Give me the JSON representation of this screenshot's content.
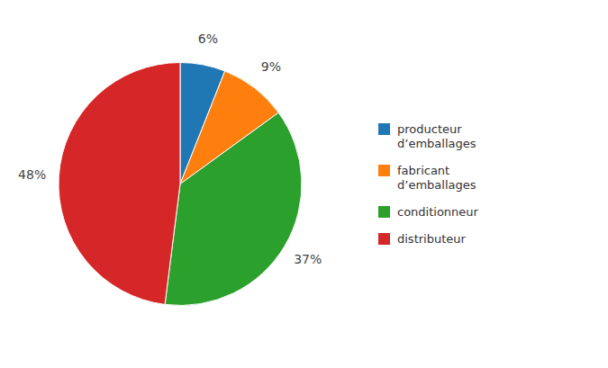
{
  "chart_data": {
    "type": "pie",
    "categories": [
      "producteur\nd’emballages",
      "fabricant\nd’emballages",
      "conditionneur",
      "distributeur"
    ],
    "values": [
      6,
      9,
      37,
      48
    ],
    "value_labels": [
      "6%",
      "9%",
      "37%",
      "48%"
    ],
    "data_labels": true,
    "legend": "right"
  }
}
